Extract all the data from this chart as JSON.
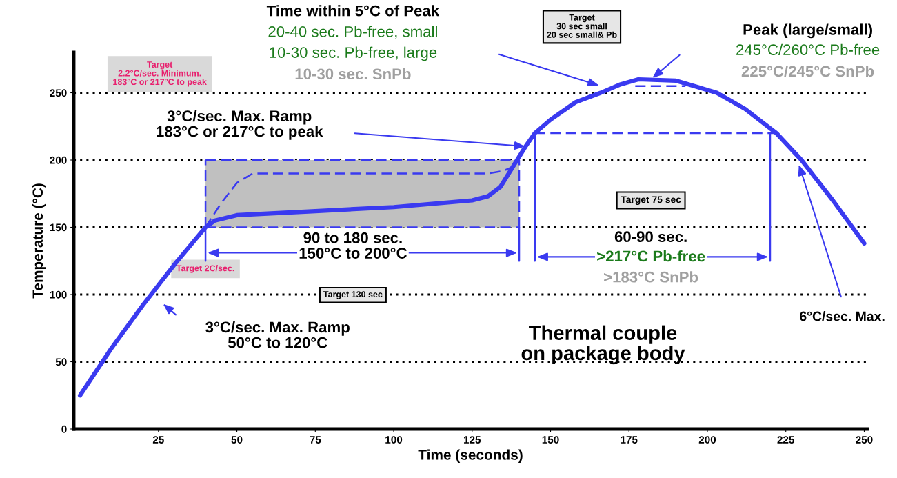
{
  "chart_data": {
    "type": "line",
    "xlabel": "Time (seconds)",
    "ylabel": "Temperature (°C)",
    "xlim": [
      -2,
      251
    ],
    "ylim": [
      0,
      280
    ],
    "xticks": [
      25,
      50,
      75,
      100,
      125,
      150,
      175,
      200,
      225,
      250
    ],
    "yticks": [
      0,
      50,
      100,
      150,
      200,
      250
    ],
    "grid": "y",
    "marker": "none",
    "tick_labels": true,
    "series": [
      {
        "color": "#3a3af0",
        "line_style": "solid",
        "x": [
          0,
          10,
          20,
          30,
          40,
          43,
          50,
          75,
          100,
          125,
          130,
          134,
          138,
          142,
          145,
          150,
          158,
          166,
          172,
          178,
          190,
          203,
          212,
          222,
          230,
          240,
          250
        ],
        "values": [
          25,
          60,
          92,
          122,
          150,
          155,
          159,
          162,
          165,
          170,
          173,
          180,
          195,
          210,
          220,
          230,
          243,
          250,
          256,
          260,
          259,
          250,
          238,
          220,
          200,
          170,
          138
        ]
      },
      {
        "color": "#3a3af0",
        "line_style": "dashed",
        "x": [
          40,
          45,
          50,
          55,
          100,
          130,
          135,
          140
        ],
        "values": [
          150,
          168,
          183,
          190,
          190,
          190,
          192,
          197
        ]
      },
      {
        "type": "line",
        "color": "#3a3af0",
        "line_style": "dashed",
        "x": [
          40,
          140
        ],
        "values": [
          200,
          200
        ]
      },
      {
        "type": "line",
        "color": "#3a3af0",
        "line_style": "dashed",
        "x": [
          40,
          140
        ],
        "values": [
          150,
          150
        ]
      },
      {
        "type": "line",
        "color": "#3a3af0",
        "line_style": "dashed",
        "x": [
          40,
          40
        ],
        "values": [
          150,
          200
        ]
      },
      {
        "type": "line",
        "color": "#3a3af0",
        "line_style": "dashed",
        "x": [
          140,
          140
        ],
        "values": [
          150,
          200
        ]
      },
      {
        "type": "line",
        "color": "#3a3af0",
        "line_style": "dashed",
        "x": [
          145,
          222
        ],
        "values": [
          220,
          220
        ]
      },
      {
        "type": "line",
        "color": "#3a3af0",
        "line_style": "dashed",
        "x": [
          177,
          193
        ],
        "values": [
          255,
          255
        ]
      },
      {
        "type": "line",
        "color": "#3a3af0",
        "line_style": "solid",
        "x": [
          145,
          145
        ],
        "values": [
          125,
          220
        ]
      },
      {
        "type": "line",
        "color": "#3a3af0",
        "line_style": "solid",
        "x": [
          220,
          220
        ],
        "values": [
          125,
          220
        ]
      },
      {
        "type": "line",
        "color": "#3a3af0",
        "line_style": "solid",
        "x": [
          40,
          40
        ],
        "values": [
          125,
          150
        ]
      },
      {
        "type": "line",
        "color": "#3a3af0",
        "line_style": "solid",
        "x": [
          140,
          140
        ],
        "values": [
          125,
          150
        ]
      }
    ],
    "annotations": [
      "Time within 5°C of Peak",
      "20-40 sec. Pb-free, small",
      "10-30 sec. Pb-free, large",
      "10-30 sec. SnPb",
      "Target\n30 sec small\n20 sec small& Pb",
      "Peak (large/small)",
      "245°C/260°C Pb-free",
      "225°C/245°C SnPb",
      "Target\n2.2°C/sec. Minimum.\n183°C or 217°C to peak",
      "3°C/sec. Max. Ramp\n183°C or 217°C to peak",
      "Target 75 sec",
      "90 to 180 sec.\n150°C to 200°C",
      "60-90 sec.",
      ">217°C Pb-free",
      ">183°C SnPb",
      "Target 2C/sec.",
      "Target 130 sec",
      "3°C/sec. Max. Ramp\n50°C to 120°C",
      "Thermal couple\non package body",
      "6°C/sec. Max."
    ]
  }
}
